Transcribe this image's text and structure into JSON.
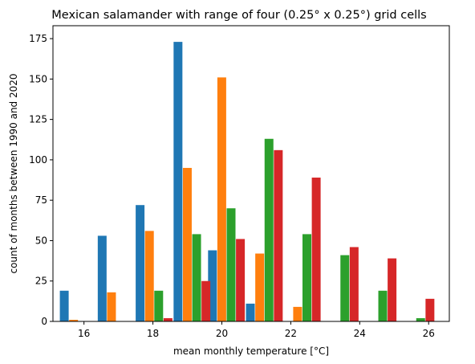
{
  "chart_data": {
    "type": "bar",
    "title": "Mexican salamander with range of four (0.25° x 0.25°) grid cells",
    "xlabel": "mean monthly temperature [°C]",
    "ylabel": "count of months between 1990 and 2020",
    "xlim": [
      15.1,
      26.6
    ],
    "ylim": [
      0,
      183
    ],
    "xticks": [
      16,
      18,
      20,
      22,
      24,
      26
    ],
    "yticks": [
      0,
      25,
      50,
      75,
      100,
      125,
      150,
      175
    ],
    "grid": false,
    "bin_starts": [
      15.3,
      16.4,
      17.5,
      18.6,
      19.6,
      20.7,
      21.8,
      22.9,
      24.0,
      25.1
    ],
    "bin_width": 1.08,
    "series": [
      {
        "color": "#1f77b4",
        "values": [
          19,
          53,
          72,
          173,
          44,
          11,
          0,
          0,
          0,
          0
        ]
      },
      {
        "color": "#ff7f0e",
        "values": [
          1,
          18,
          56,
          95,
          151,
          42,
          9,
          0,
          0,
          0
        ]
      },
      {
        "color": "#2ca02c",
        "values": [
          0,
          0,
          19,
          54,
          70,
          113,
          54,
          41,
          19,
          2
        ]
      },
      {
        "color": "#d62728",
        "values": [
          0,
          0,
          2,
          25,
          51,
          106,
          89,
          46,
          39,
          14
        ]
      }
    ]
  }
}
